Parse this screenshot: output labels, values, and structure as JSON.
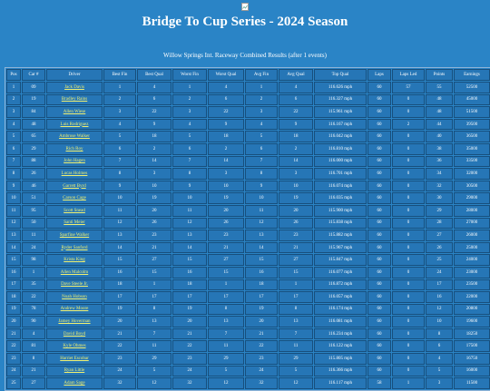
{
  "header": {
    "title": "Bridge To Cup Series - 2024 Season",
    "subtitle": "Willow Springs Int. Raceway Combined Results (after 1 events)"
  },
  "table": {
    "headers": [
      "Pos",
      "Car #",
      "Driver",
      "Best Fin",
      "Best Qual",
      "Worst Fin",
      "Worst Qual",
      "Avg Fin",
      "Avg Qual",
      "Top Qual",
      "Laps",
      "Laps Led",
      "Points",
      "Earnings"
    ],
    "rows": [
      [
        "1",
        "09",
        "Jack Davis",
        "1",
        "4",
        "1",
        "4",
        "1",
        "4",
        "116.626 mph",
        "60",
        "57",
        "55",
        "52500"
      ],
      [
        "2",
        "19",
        "Bradley Rains",
        "2",
        "6",
        "2",
        "6",
        "2",
        "6",
        "116.327 mph",
        "60",
        "0",
        "48",
        "45000"
      ],
      [
        "3",
        "84",
        "Allen Wiese",
        "3",
        "22",
        "3",
        "22",
        "3",
        "22",
        "115.961 mph",
        "60",
        "0",
        "48",
        "51500"
      ],
      [
        "4",
        "48",
        "Luis Rodriguez",
        "4",
        "9",
        "4",
        "9",
        "4",
        "9",
        "116.167 mph",
        "60",
        "2",
        "44",
        "39500"
      ],
      [
        "5",
        "65",
        "Ambrose Walker",
        "5",
        "18",
        "5",
        "18",
        "5",
        "18",
        "116.042 mph",
        "60",
        "0",
        "40",
        "36500"
      ],
      [
        "6",
        "29",
        "Rich Roy",
        "6",
        "2",
        "6",
        "2",
        "6",
        "2",
        "116.810 mph",
        "60",
        "0",
        "38",
        "35000"
      ],
      [
        "7",
        "88",
        "John Hagen",
        "7",
        "14",
        "7",
        "14",
        "7",
        "14",
        "116.000 mph",
        "60",
        "0",
        "36",
        "33500"
      ],
      [
        "8",
        "26",
        "Lucas Holmes",
        "8",
        "3",
        "8",
        "3",
        "8",
        "3",
        "116.701 mph",
        "60",
        "0",
        "34",
        "32000"
      ],
      [
        "9",
        "46",
        "Garrett Byrd",
        "9",
        "10",
        "9",
        "10",
        "9",
        "10",
        "116.074 mph",
        "60",
        "0",
        "32",
        "30500"
      ],
      [
        "10",
        "51",
        "Carson Cage",
        "10",
        "19",
        "10",
        "19",
        "10",
        "19",
        "116.035 mph",
        "60",
        "0",
        "30",
        "29000"
      ],
      [
        "11",
        "95",
        "Scott Snead",
        "11",
        "20",
        "11",
        "20",
        "11",
        "20",
        "115.900 mph",
        "60",
        "0",
        "29",
        "28000"
      ],
      [
        "12",
        "50",
        "Santi Meier",
        "12",
        "26",
        "12",
        "26",
        "12",
        "26",
        "115.838 mph",
        "60",
        "0",
        "28",
        "27000"
      ],
      [
        "13",
        "11",
        "Sparfine Walker",
        "13",
        "23",
        "13",
        "23",
        "13",
        "23",
        "115.882 mph",
        "60",
        "0",
        "27",
        "26000"
      ],
      [
        "14",
        "24",
        "Ryder Sanford",
        "14",
        "21",
        "14",
        "21",
        "14",
        "21",
        "115.967 mph",
        "60",
        "0",
        "26",
        "25000"
      ],
      [
        "15",
        "98",
        "Krista King",
        "15",
        "27",
        "15",
        "27",
        "15",
        "27",
        "115.847 mph",
        "60",
        "0",
        "25",
        "24000"
      ],
      [
        "16",
        "1",
        "Allen Malcolm",
        "16",
        "15",
        "16",
        "15",
        "16",
        "15",
        "116.077 mph",
        "60",
        "0",
        "24",
        "23000"
      ],
      [
        "17",
        "35",
        "Dave Steele Jr.",
        "18",
        "1",
        "18",
        "1",
        "18",
        "1",
        "116.872 mph",
        "60",
        "0",
        "17",
        "23500"
      ],
      [
        "18",
        "22",
        "Noah Hobson",
        "17",
        "17",
        "17",
        "17",
        "17",
        "17",
        "116.057 mph",
        "60",
        "0",
        "16",
        "22000"
      ],
      [
        "19",
        "78",
        "Andrew Moore",
        "19",
        "8",
        "19",
        "8",
        "19",
        "8",
        "116.174 mph",
        "60",
        "0",
        "12",
        "20800"
      ],
      [
        "20",
        "90",
        "Jamey Hoverman",
        "20",
        "13",
        "20",
        "13",
        "20",
        "13",
        "116.081 mph",
        "60",
        "0",
        "10",
        "19600"
      ],
      [
        "21",
        "4",
        "David Boyd",
        "21",
        "7",
        "21",
        "7",
        "21",
        "7",
        "116.234 mph",
        "60",
        "0",
        "8",
        "18250"
      ],
      [
        "22",
        "81",
        "Kyle Ohmes",
        "22",
        "11",
        "22",
        "11",
        "22",
        "11",
        "116.122 mph",
        "60",
        "0",
        "6",
        "17500"
      ],
      [
        "23",
        "8",
        "Harriet Escobar",
        "23",
        "29",
        "23",
        "29",
        "23",
        "29",
        "115.805 mph",
        "60",
        "0",
        "4",
        "16750"
      ],
      [
        "24",
        "21",
        "Ryan Little",
        "24",
        "5",
        "24",
        "5",
        "24",
        "5",
        "116.366 mph",
        "60",
        "0",
        "5",
        "16000"
      ],
      [
        "25",
        "27",
        "Adam Sage",
        "32",
        "12",
        "32",
        "12",
        "32",
        "12",
        "116.117 mph",
        "58",
        "1",
        "3",
        "11500"
      ]
    ]
  }
}
